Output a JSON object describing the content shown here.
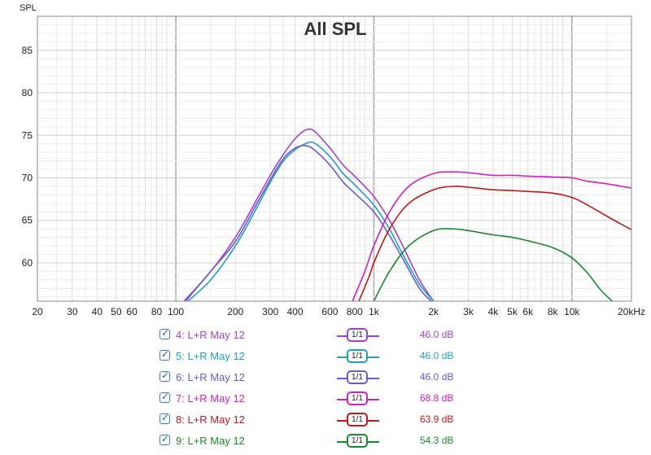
{
  "chart_data": {
    "type": "line",
    "title": "All SPL",
    "ylabel": "SPL",
    "xlabel": "",
    "xscale": "log",
    "xlim": [
      20,
      20000
    ],
    "ylim": [
      55.5,
      89
    ],
    "x_ticks": [
      {
        "v": 20,
        "label": "20"
      },
      {
        "v": 30,
        "label": "30"
      },
      {
        "v": 40,
        "label": "40"
      },
      {
        "v": 50,
        "label": "50"
      },
      {
        "v": 60,
        "label": "60"
      },
      {
        "v": 80,
        "label": "80"
      },
      {
        "v": 100,
        "label": "100"
      },
      {
        "v": 200,
        "label": "200"
      },
      {
        "v": 300,
        "label": "300"
      },
      {
        "v": 400,
        "label": "400"
      },
      {
        "v": 600,
        "label": "600"
      },
      {
        "v": 800,
        "label": "800"
      },
      {
        "v": 1000,
        "label": "1k"
      },
      {
        "v": 2000,
        "label": "2k"
      },
      {
        "v": 3000,
        "label": "3k"
      },
      {
        "v": 4000,
        "label": "4k"
      },
      {
        "v": 5000,
        "label": "5k"
      },
      {
        "v": 6000,
        "label": "6k"
      },
      {
        "v": 8000,
        "label": "8k"
      },
      {
        "v": 10000,
        "label": "10k"
      },
      {
        "v": 20000,
        "label": "20kHz"
      }
    ],
    "y_ticks": [
      {
        "v": 60,
        "label": "60"
      },
      {
        "v": 65,
        "label": "65"
      },
      {
        "v": 70,
        "label": "70"
      },
      {
        "v": 75,
        "label": "75"
      },
      {
        "v": 80,
        "label": "80"
      },
      {
        "v": 85,
        "label": "85"
      }
    ],
    "grid": true,
    "series": [
      {
        "name": "4: L+R May 12",
        "color": "#a040d0",
        "smoothing": "1/1",
        "value_label": "46.0 dB",
        "x": [
          110,
          150,
          200,
          250,
          300,
          350,
          400,
          450,
          500,
          600,
          700,
          800,
          1000,
          1200,
          1400,
          1700,
          2000
        ],
        "y": [
          55.5,
          59,
          63,
          67,
          70.3,
          72.8,
          74.6,
          75.6,
          75.5,
          73.5,
          71.5,
          70.2,
          67.8,
          65,
          62,
          58,
          55.5
        ]
      },
      {
        "name": "5: L+R May 12",
        "color": "#20a0c0",
        "smoothing": "1/1",
        "value_label": "46.0 dB",
        "x": [
          115,
          150,
          200,
          250,
          300,
          350,
          400,
          450,
          500,
          600,
          700,
          800,
          1000,
          1200,
          1400,
          1700,
          2000
        ],
        "y": [
          55.5,
          58,
          62,
          66,
          69.5,
          72,
          73.3,
          74,
          74.1,
          72.5,
          70.5,
          69.2,
          66.8,
          64,
          61,
          57.5,
          55.5
        ]
      },
      {
        "name": "6: L+R May 12",
        "color": "#6a5ad0",
        "smoothing": "1/1",
        "value_label": "46.0 dB",
        "x": [
          112,
          150,
          200,
          250,
          300,
          350,
          400,
          450,
          500,
          600,
          700,
          800,
          1000,
          1200,
          1400,
          1700,
          1950
        ],
        "y": [
          55.5,
          59,
          62.5,
          66.5,
          69.8,
          72.3,
          73.5,
          73.8,
          73.3,
          71.5,
          69.5,
          68.2,
          66,
          63.2,
          60.5,
          57,
          55.5
        ]
      },
      {
        "name": "7: L+R May 12",
        "color": "#d020c0",
        "smoothing": "1/1",
        "value_label": "68.8 dB",
        "x": [
          780,
          900,
          1000,
          1200,
          1500,
          2000,
          2500,
          3000,
          4000,
          5000,
          6000,
          8000,
          10000,
          12000,
          15000,
          20000
        ],
        "y": [
          55.5,
          59,
          62,
          66,
          69,
          70.5,
          70.7,
          70.6,
          70.3,
          70.3,
          70.2,
          70.1,
          70,
          69.6,
          69.3,
          68.8
        ]
      },
      {
        "name": "8: L+R May 12",
        "color": "#c01818",
        "smoothing": "1/1",
        "value_label": "63.9 dB",
        "x": [
          840,
          950,
          1000,
          1200,
          1500,
          2000,
          2500,
          3000,
          4000,
          5000,
          6000,
          8000,
          10000,
          12000,
          15000,
          20000
        ],
        "y": [
          55.5,
          58.5,
          60,
          64,
          67,
          68.6,
          69,
          68.9,
          68.6,
          68.5,
          68.4,
          68.2,
          67.7,
          66.8,
          65.5,
          63.9
        ]
      },
      {
        "name": "9: L+R May 12",
        "color": "#1a8a2a",
        "smoothing": "1/1",
        "value_label": "54.3 dB",
        "x": [
          1000,
          1200,
          1500,
          2000,
          2500,
          3000,
          4000,
          5000,
          6000,
          8000,
          10000,
          12000,
          14000,
          16000
        ],
        "y": [
          55.5,
          59,
          62,
          63.8,
          64,
          63.8,
          63.3,
          63,
          62.6,
          61.8,
          60.6,
          58.8,
          56.8,
          55.5
        ]
      }
    ]
  }
}
